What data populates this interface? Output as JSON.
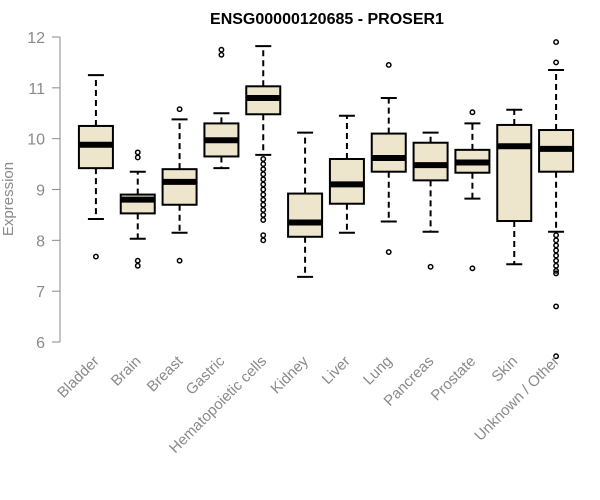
{
  "chart_data": {
    "type": "boxplot",
    "title": "ENSG00000120685 - PROSER1",
    "ylabel": "Expression",
    "xlabel": "",
    "ylim": [
      5.7,
      12.0
    ],
    "yticks": [
      6,
      7,
      8,
      9,
      10,
      11,
      12
    ],
    "colors": {
      "box_fill": "#ede6cc",
      "box_stroke": "#000000",
      "median": "#000000",
      "axis": "#8a8a8a"
    },
    "categories": [
      "Bladder",
      "Brain",
      "Breast",
      "Gastric",
      "Hematopoietic cells",
      "Kidney",
      "Liver",
      "Lung",
      "Pancreas",
      "Prostate",
      "Skin",
      "Unknown / Other"
    ],
    "boxes": [
      {
        "q1": 9.42,
        "median": 9.88,
        "q3": 10.25,
        "whisker_low": 8.42,
        "whisker_high": 11.25,
        "outliers": [
          7.68
        ]
      },
      {
        "q1": 8.53,
        "median": 8.8,
        "q3": 8.9,
        "whisker_low": 8.03,
        "whisker_high": 9.35,
        "outliers": [
          9.63,
          9.73,
          7.6,
          7.5
        ]
      },
      {
        "q1": 8.7,
        "median": 9.15,
        "q3": 9.4,
        "whisker_low": 8.15,
        "whisker_high": 10.38,
        "outliers": [
          10.58,
          7.6
        ]
      },
      {
        "q1": 9.65,
        "median": 9.97,
        "q3": 10.3,
        "whisker_low": 9.42,
        "whisker_high": 10.5,
        "outliers": [
          11.65,
          11.75
        ]
      },
      {
        "q1": 10.48,
        "median": 10.8,
        "q3": 11.03,
        "whisker_low": 9.68,
        "whisker_high": 11.82,
        "outliers": [
          9.6,
          9.5,
          9.4,
          9.3,
          9.2,
          9.1,
          9.0,
          8.9,
          8.8,
          8.7,
          8.6,
          8.5,
          8.4,
          8.1,
          8.0
        ]
      },
      {
        "q1": 8.07,
        "median": 8.35,
        "q3": 8.92,
        "whisker_low": 7.28,
        "whisker_high": 10.12,
        "outliers": []
      },
      {
        "q1": 8.72,
        "median": 9.1,
        "q3": 9.6,
        "whisker_low": 8.15,
        "whisker_high": 10.45,
        "outliers": []
      },
      {
        "q1": 9.35,
        "median": 9.62,
        "q3": 10.1,
        "whisker_low": 8.37,
        "whisker_high": 10.8,
        "outliers": [
          11.45,
          7.77
        ]
      },
      {
        "q1": 9.18,
        "median": 9.48,
        "q3": 9.92,
        "whisker_low": 8.17,
        "whisker_high": 10.12,
        "outliers": [
          7.48
        ]
      },
      {
        "q1": 9.33,
        "median": 9.53,
        "q3": 9.78,
        "whisker_low": 8.82,
        "whisker_high": 10.3,
        "outliers": [
          10.52,
          7.45
        ]
      },
      {
        "q1": 8.38,
        "median": 9.85,
        "q3": 10.27,
        "whisker_low": 7.53,
        "whisker_high": 10.57,
        "outliers": []
      },
      {
        "q1": 9.35,
        "median": 9.8,
        "q3": 10.17,
        "whisker_low": 8.17,
        "whisker_high": 11.35,
        "outliers": [
          11.9,
          11.5,
          8.1,
          8.0,
          7.9,
          7.8,
          7.7,
          7.6,
          7.5,
          7.4,
          7.35,
          6.7,
          5.72
        ]
      }
    ]
  }
}
